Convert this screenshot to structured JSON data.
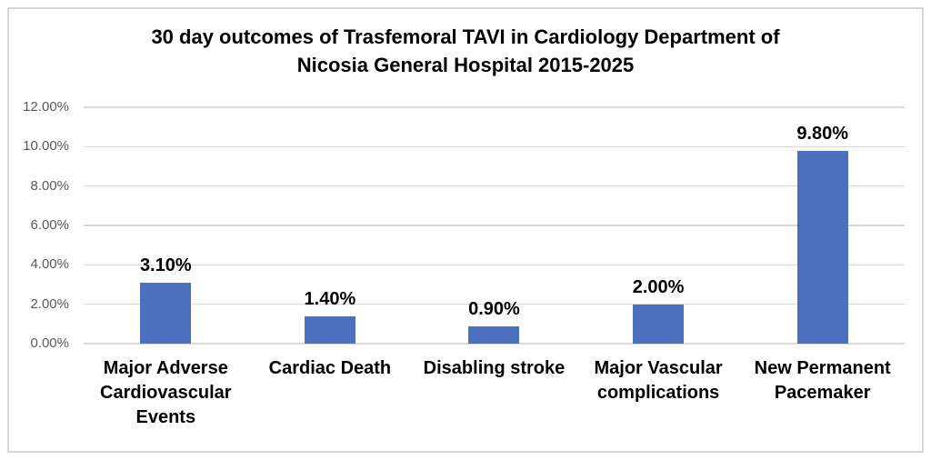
{
  "chart_data": {
    "type": "bar",
    "title": "30 day outcomes of Trasfemoral TAVI in Cardiology Department of Nicosia General Hospital 2015-2025",
    "title_lines": [
      "30 day outcomes of Trasfemoral TAVI in Cardiology Department of",
      "Nicosia General Hospital 2015-2025"
    ],
    "categories": [
      "Major Adverse Cardiovascular Events",
      "Cardiac Death",
      "Disabling stroke",
      "Major Vascular complications",
      "New Permanent Pacemaker"
    ],
    "values": [
      3.1,
      1.4,
      0.9,
      2.0,
      9.8
    ],
    "data_labels": [
      "3.10%",
      "1.40%",
      "0.90%",
      "2.00%",
      "9.80%"
    ],
    "xlabel": "",
    "ylabel": "",
    "ylim": [
      0,
      12
    ],
    "y_tick_values": [
      0,
      2,
      4,
      6,
      8,
      10,
      12
    ],
    "y_tick_labels": [
      "0.00%",
      "2.00%",
      "4.00%",
      "6.00%",
      "8.00%",
      "10.00%",
      "12.00%"
    ],
    "grid": true,
    "legend_position": "none",
    "colors": {
      "bar": "#4c70be",
      "gridline": "#d9d9d9",
      "axis_text": "#595959",
      "label_text": "#000000",
      "frame_border": "#d6d6d6"
    }
  }
}
